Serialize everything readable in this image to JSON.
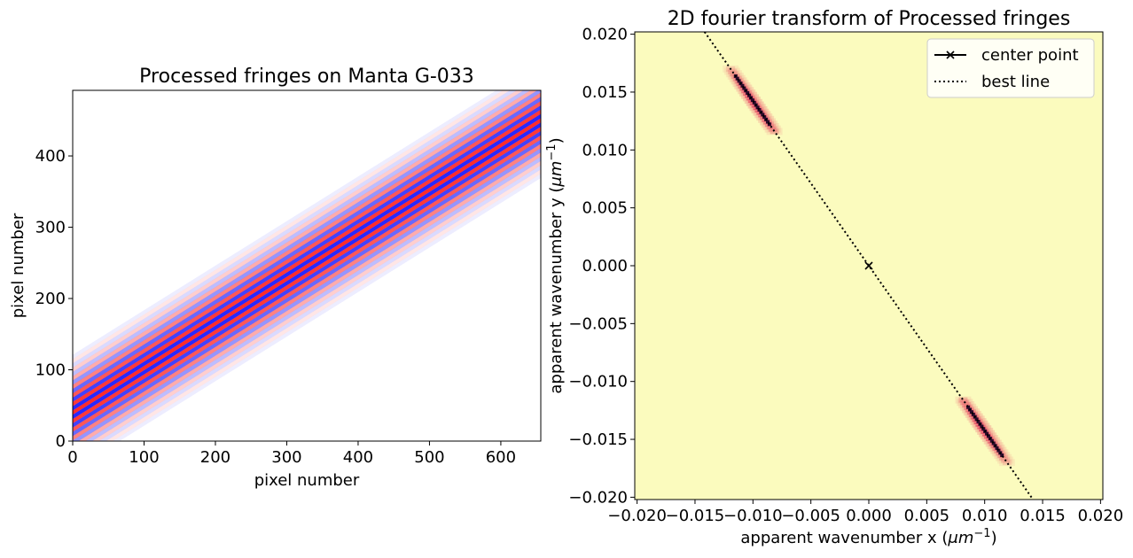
{
  "chart_data": [
    {
      "type": "heatmap",
      "title": "Processed fringes on Manta G-033",
      "xlabel": "pixel number",
      "ylabel": "pixel number",
      "xlim": [
        0,
        656
      ],
      "ylim": [
        0,
        492
      ],
      "xticks": [
        0,
        100,
        200,
        300,
        400,
        500,
        600
      ],
      "yticks": [
        0,
        100,
        200,
        300,
        400
      ],
      "xtick_labels": [
        "0",
        "100",
        "200",
        "300",
        "400",
        "500",
        "600"
      ],
      "ytick_labels": [
        "0",
        "100",
        "200",
        "300",
        "400"
      ],
      "colormap": "bwr",
      "colors": {
        "positive": "#ff2020",
        "negative": "#1a1aff",
        "zero": "#ffffff"
      },
      "fringe_band": {
        "center_line": {
          "points": [
            [
              0,
              40
            ],
            [
              656,
              450
            ]
          ]
        },
        "fringe_period_px": 12,
        "envelope_halfwidth_px": 90
      }
    },
    {
      "type": "heatmap",
      "title": "2D fourier transform of Processed fringes",
      "xlabel": "apparent wavenumber x (μm⁻¹)",
      "ylabel": "apparent wavenumber y (μm⁻¹)",
      "xlabel_parts": {
        "main": "apparent wavenumber x (",
        "mu": "μm",
        "exp": "−1",
        "close": ")"
      },
      "ylabel_parts": {
        "main": "apparent wavenumber y (",
        "mu": "μm",
        "exp": "−1",
        "close": ")"
      },
      "xlim": [
        -0.0202,
        0.0202
      ],
      "ylim": [
        -0.0202,
        0.0202
      ],
      "xticks": [
        -0.02,
        -0.015,
        -0.01,
        -0.005,
        0.0,
        0.005,
        0.01,
        0.015,
        0.02
      ],
      "yticks": [
        -0.02,
        -0.015,
        -0.01,
        -0.005,
        0.0,
        0.005,
        0.01,
        0.015,
        0.02
      ],
      "xtick_labels": [
        "−0.020",
        "−0.015",
        "−0.010",
        "−0.005",
        "0.000",
        "0.005",
        "0.010",
        "0.015",
        "0.020"
      ],
      "ytick_labels": [
        "−0.020",
        "−0.015",
        "−0.010",
        "−0.005",
        "0.000",
        "0.005",
        "0.010",
        "0.015",
        "0.020"
      ],
      "colormap": "magma_r",
      "colors": {
        "background": "#fbfbbe",
        "glow": "#f4ad96",
        "mid": "#e33b5a",
        "peak": "#2a0a2a"
      },
      "peaks": [
        {
          "x": -0.0098,
          "y": 0.014,
          "x_range": [
            -0.012,
            -0.0076
          ],
          "y_range": [
            0.0116,
            0.017
          ]
        },
        {
          "x": 0.0098,
          "y": -0.014,
          "x_range": [
            0.0076,
            0.012
          ],
          "y_range": [
            -0.017,
            -0.0116
          ]
        }
      ],
      "series": [
        {
          "name": "center point",
          "type": "line-marker",
          "marker": "x",
          "x": [
            0.0
          ],
          "y": [
            0.0
          ],
          "color": "#000000"
        },
        {
          "name": "best line",
          "type": "dotted-line",
          "slope": -1.425,
          "intercept": 0.0,
          "color": "#000000"
        }
      ],
      "legend": {
        "position": "top-right",
        "entries": [
          "center point",
          "best line"
        ]
      }
    }
  ]
}
